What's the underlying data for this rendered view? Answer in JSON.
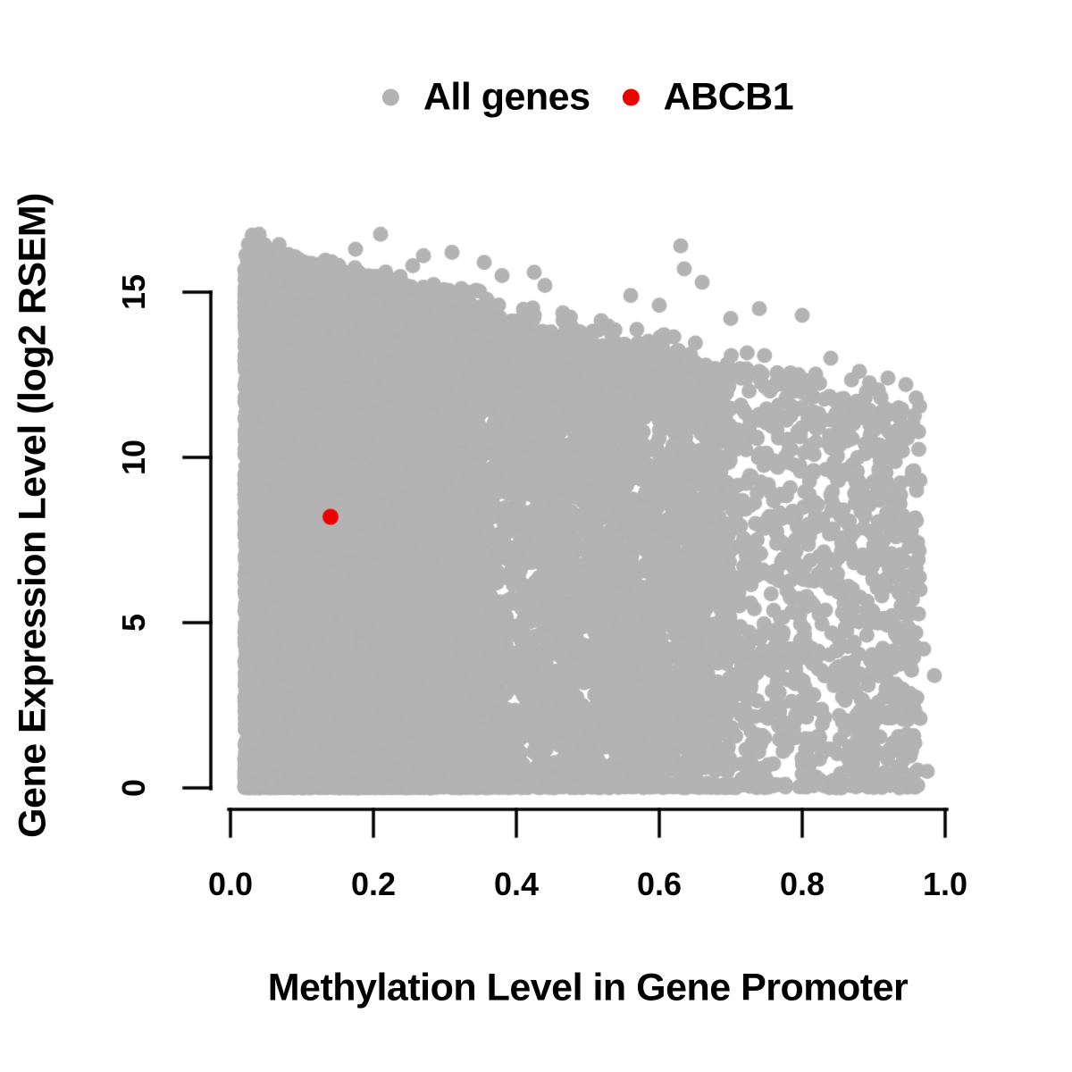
{
  "figure": {
    "background_color": "#ffffff",
    "text_color": "#000000",
    "axis_color": "#000000"
  },
  "legend": {
    "position": "top-center",
    "items": [
      {
        "label": "All genes",
        "color": "#b3b3b3",
        "marker": "filled-circle"
      },
      {
        "label": "ABCB1",
        "color": "#ee0000",
        "marker": "filled-circle"
      }
    ]
  },
  "chart_data": {
    "type": "scatter",
    "title": "",
    "xlabel": "Methylation Level in Gene Promoter",
    "ylabel": "Gene Expression Level (log2 RSEM)",
    "xlim": [
      0,
      1.05
    ],
    "ylim": [
      0,
      17
    ],
    "grid": false,
    "x_ticks": {
      "values": [
        0,
        0.2,
        0.4,
        0.6,
        0.8,
        1.0
      ],
      "labels": [
        "0.0",
        "0.2",
        "0.4",
        "0.6",
        "0.8",
        "1.0"
      ]
    },
    "y_ticks": {
      "values": [
        0,
        5,
        10,
        15
      ],
      "labels": [
        "0",
        "5",
        "10",
        "15"
      ]
    },
    "series": [
      {
        "name": "All genes",
        "color": "#b3b3b3",
        "marker": "filled-circle",
        "marker_radius_px": 8.5,
        "kind": "dense-cloud",
        "n_points": 15000,
        "seed": 1337,
        "x_range": [
          0.02,
          0.965
        ],
        "y_range": [
          0,
          16.9
        ],
        "density_model": {
          "comment": "Approximate distribution read from the figure: very dense solid mass at low methylation, density and max expression decline as methylation rises; dense pile of points at expression 0; sparse scatter band above the solid mass.",
          "x_mixture": [
            {
              "weight": 0.5,
              "min": 0.02,
              "span": 0.33,
              "pow": 1.4
            },
            {
              "weight": 0.32,
              "min": 0.02,
              "span": 0.68,
              "pow": 1.05
            },
            {
              "weight": 0.18,
              "min": 0.02,
              "span": 0.945,
              "pow": 0.75
            }
          ],
          "solid_top": {
            "intercept": 13.8,
            "slope": -4.5
          },
          "scatter_top": {
            "intercept": 16.9,
            "slope": -5.0
          },
          "medium_band_height": 1.8,
          "fractions": {
            "zero_pile": 0.06,
            "solid_uniform": 0.74,
            "medium_band": 0.15,
            "sparse_top": 0.05
          }
        },
        "notable_points": [
          [
            0.04,
            16.75
          ],
          [
            0.05,
            16.0
          ],
          [
            0.07,
            15.8
          ],
          [
            0.13,
            15.9
          ],
          [
            0.175,
            16.3
          ],
          [
            0.21,
            16.75
          ],
          [
            0.255,
            15.8
          ],
          [
            0.27,
            16.1
          ],
          [
            0.31,
            16.2
          ],
          [
            0.355,
            15.9
          ],
          [
            0.38,
            15.5
          ],
          [
            0.425,
            15.6
          ],
          [
            0.44,
            15.2
          ],
          [
            0.56,
            14.9
          ],
          [
            0.6,
            14.6
          ],
          [
            0.63,
            16.4
          ],
          [
            0.635,
            15.7
          ],
          [
            0.66,
            15.3
          ],
          [
            0.7,
            14.2
          ],
          [
            0.74,
            14.5
          ],
          [
            0.8,
            14.3
          ],
          [
            0.84,
            13.0
          ],
          [
            0.88,
            12.6
          ],
          [
            0.92,
            12.4
          ],
          [
            0.945,
            12.2
          ],
          [
            0.955,
            11.0
          ],
          [
            0.96,
            9.0
          ],
          [
            0.965,
            6.0
          ],
          [
            0.97,
            4.2
          ],
          [
            0.965,
            2.1
          ],
          [
            0.975,
            0.5
          ],
          [
            0.985,
            3.4
          ]
        ]
      },
      {
        "name": "ABCB1",
        "color": "#ee0000",
        "marker": "filled-circle",
        "marker_radius_px": 9,
        "kind": "highlight",
        "points": [
          [
            0.14,
            8.2
          ]
        ]
      }
    ]
  }
}
